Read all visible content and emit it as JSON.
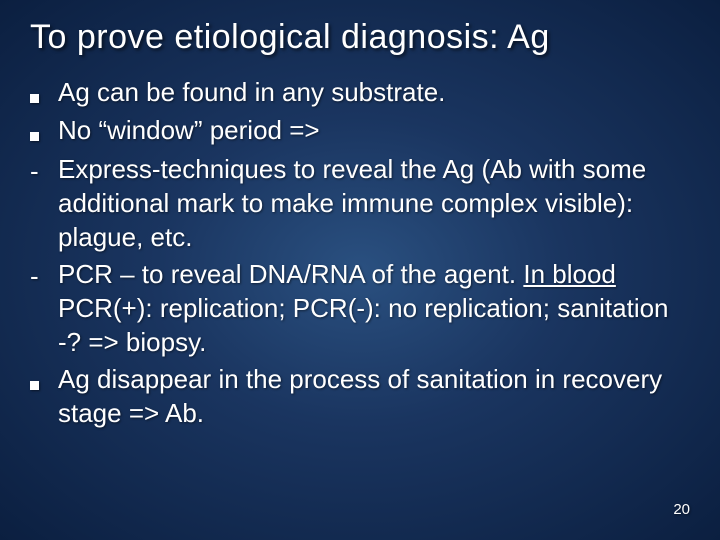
{
  "slide": {
    "title": "To prove etiological diagnosis: Ag",
    "title_fontsize": 34,
    "body_fontsize": 26,
    "background_gradient": [
      "#2a5080",
      "#1a3560",
      "#0b1f40"
    ],
    "text_color": "#ffffff",
    "bullet_color": "#ffffff",
    "items": [
      {
        "marker": "square",
        "text": "Ag can be found in any substrate."
      },
      {
        "marker": "square",
        "text": "No “window” period =>"
      },
      {
        "marker": "dash",
        "text": "Express-techniques to reveal the Ag (Ab with some additional mark to make immune complex visible): plague, etc."
      },
      {
        "marker": "dash",
        "text_parts": [
          {
            "t": "PCR – to reveal DNA/RNA of the agent. "
          },
          {
            "t": "In blood ",
            "underline": true
          },
          {
            "t": "PCR(+): replication; PCR(-): no replication; sanitation -? => biopsy."
          }
        ]
      },
      {
        "marker": "square",
        "text": "Ag disappear in the process of sanitation in recovery stage => Ab."
      }
    ],
    "page_number": "20"
  }
}
